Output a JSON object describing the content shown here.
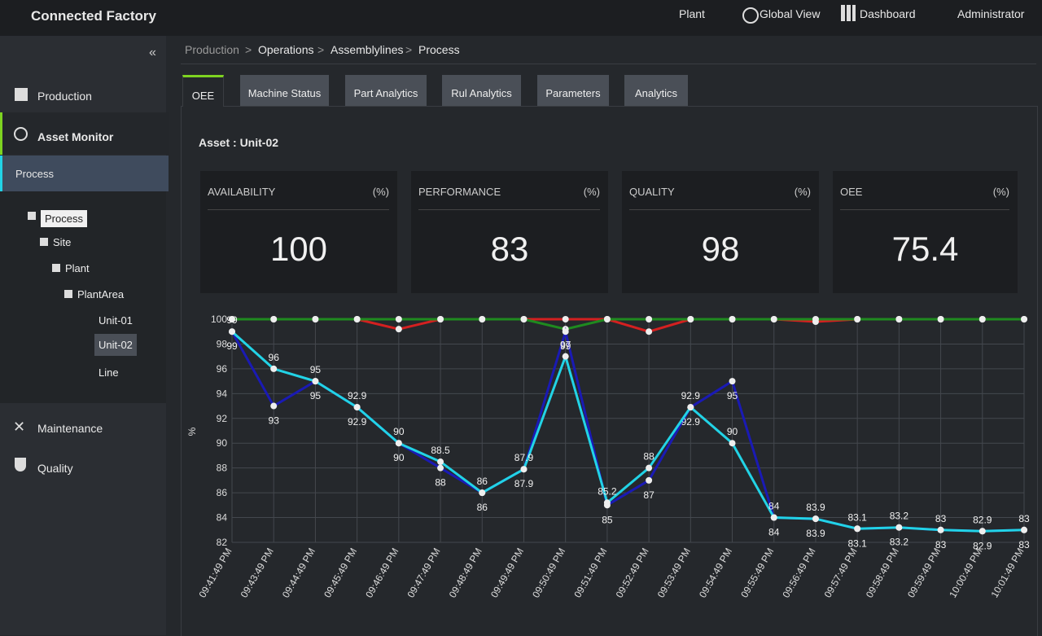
{
  "header": {
    "title": "Connected Factory",
    "nav": [
      "Plant",
      "Global View",
      "Dashboard",
      "Administrator"
    ]
  },
  "sidebar": {
    "items": [
      "Production",
      "Asset Monitor",
      "Maintenance",
      "Quality"
    ],
    "sub_item": "Process",
    "tree": [
      "Process",
      "Site",
      "Plant",
      "PlantArea",
      "Unit-01",
      "Unit-02",
      "Line"
    ]
  },
  "breadcrumb": [
    "Production",
    "Operations",
    "Assemblylines",
    "Process"
  ],
  "tabs": [
    "OEE",
    "Machine Status",
    "Part Analytics",
    "Rul Analytics",
    "Parameters",
    "Analytics"
  ],
  "asset_label": "Asset : Unit-02",
  "kpis": [
    {
      "label": "AVAILABILITY",
      "unit": "(%)",
      "value": 100
    },
    {
      "label": "PERFORMANCE",
      "unit": "(%)",
      "value": 83
    },
    {
      "label": "QUALITY",
      "unit": "(%)",
      "value": 98
    },
    {
      "label": "OEE",
      "unit": "(%)",
      "value": 75.4
    }
  ],
  "chart_data": {
    "type": "line",
    "y_label": "%",
    "categories": [
      "09:41:49 PM",
      "09:43:49 PM",
      "09:44:49 PM",
      "09:45:49 PM",
      "09:46:49 PM",
      "09:47:49 PM",
      "09:48:49 PM",
      "09:49:49 PM",
      "09:50:49 PM",
      "09:51:49 PM",
      "09:52:49 PM",
      "09:53:49 PM",
      "09:54:49 PM",
      "09:55:49 PM",
      "09:56:49 PM",
      "09:57:49 PM",
      "09:58:49 PM",
      "09:59:49 PM",
      "10:00:49 PM",
      "10:01:49 PM"
    ],
    "series": [
      {
        "color": "#d42020",
        "values": [
          100,
          100,
          100,
          100,
          99.2,
          100,
          100,
          100,
          100,
          100,
          99,
          100,
          100,
          100,
          99.8,
          100,
          100,
          100,
          100,
          100
        ]
      },
      {
        "color": "#1f8a1f",
        "values": [
          100,
          100,
          100,
          100,
          100,
          100,
          100,
          100,
          99.2,
          100,
          100,
          100,
          100,
          100,
          100,
          100,
          100,
          100,
          100,
          100
        ]
      },
      {
        "color": "#1a1ab4",
        "values": [
          99,
          93,
          95,
          92.9,
          90,
          88,
          86,
          87.9,
          99,
          85,
          87,
          92.9,
          95,
          84,
          83.9,
          83.1,
          83.2,
          83,
          82.9,
          83
        ]
      },
      {
        "color": "#22d3e6",
        "values": [
          99,
          96,
          95,
          92.9,
          90,
          88.5,
          86,
          87.9,
          97,
          85.2,
          88,
          92.9,
          90,
          84,
          83.9,
          83.1,
          83.2,
          83,
          82.9,
          83
        ]
      }
    ],
    "labeled_series": [
      2,
      3
    ],
    "ylim": [
      82,
      100
    ],
    "yticks": [
      82,
      84,
      86,
      88,
      90,
      92,
      94,
      96,
      98,
      100
    ],
    "grid": true
  }
}
